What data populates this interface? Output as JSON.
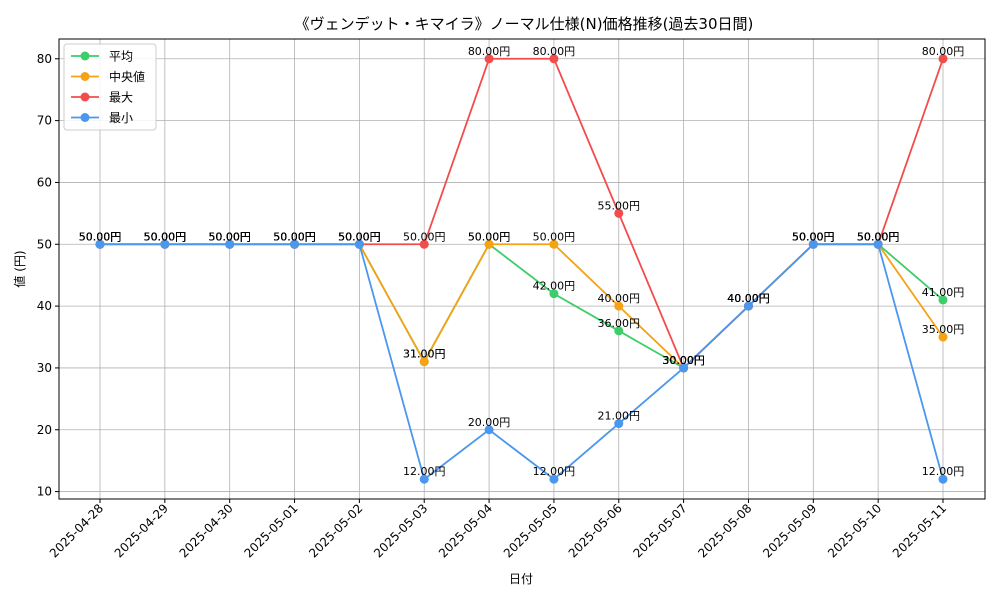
{
  "chart_data": {
    "type": "line",
    "title": "《ヴェンデット・キマイラ》ノーマル仕様(N)価格推移(過去30日間)",
    "xlabel": "日付",
    "ylabel": "値 (円)",
    "ylim": [
      8.8,
      83.2
    ],
    "yticks": [
      10,
      20,
      30,
      40,
      50,
      60,
      70,
      80
    ],
    "grid": true,
    "legend_position": "top-left",
    "value_suffix": "円",
    "categories": [
      "2025-04-28",
      "2025-04-29",
      "2025-04-30",
      "2025-05-01",
      "2025-05-02",
      "2025-05-03",
      "2025-05-04",
      "2025-05-05",
      "2025-05-06",
      "2025-05-07",
      "2025-05-08",
      "2025-05-09",
      "2025-05-10",
      "2025-05-11"
    ],
    "series": [
      {
        "name": "平均",
        "color": "#3dcd6a",
        "values": [
          50,
          50,
          50,
          50,
          50,
          31,
          50,
          42,
          36,
          30,
          40,
          50,
          50,
          41
        ]
      },
      {
        "name": "中央値",
        "color": "#f5a214",
        "values": [
          50,
          50,
          50,
          50,
          50,
          31,
          50,
          50,
          40,
          30,
          40,
          50,
          50,
          35
        ]
      },
      {
        "name": "最大",
        "color": "#f24c4c",
        "values": [
          50,
          50,
          50,
          50,
          50,
          50,
          80,
          80,
          55,
          30,
          40,
          50,
          50,
          80
        ]
      },
      {
        "name": "最小",
        "color": "#4a97f0",
        "values": [
          50,
          50,
          50,
          50,
          50,
          12,
          20,
          12,
          21,
          30,
          40,
          50,
          50,
          12
        ]
      }
    ]
  }
}
